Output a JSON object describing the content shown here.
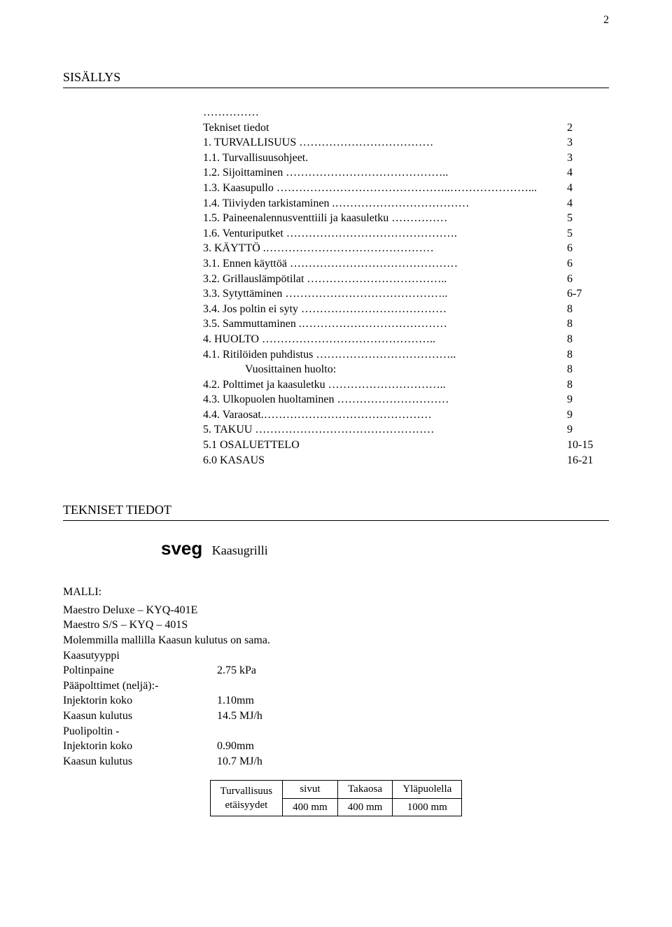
{
  "page_number": "2",
  "sections": {
    "sisallys_heading": "SISÄLLYS",
    "tekniset_heading": "TEKNISET TIEDOT"
  },
  "toc": {
    "rows": [
      {
        "indent": 1,
        "left": "……………",
        "fill": "",
        "right": "",
        "pad": false
      },
      {
        "indent": 1,
        "left": "Tekniset tiedot",
        "fill": "",
        "right": "2",
        "pad": false
      },
      {
        "indent": 1,
        "left": "1. TURVALLISUUS ",
        "fill": "………………………………",
        "right": "3",
        "pad": true
      },
      {
        "indent": 1,
        "left": "1.1. Turvallisuusohjeet. ",
        "fill": "",
        "right": "3",
        "pad": false
      },
      {
        "indent": 1,
        "left": "1.2. Sijoittaminen ",
        "fill": "……………………………………..",
        "right": "4",
        "pad": true
      },
      {
        "indent": 1,
        "left": "1.3. Kaasupullo ",
        "fill": "………………………………………..…………………...",
        "right": "4",
        "pad": true
      },
      {
        "indent": 1,
        "left": "1.4. Tiiviyden tarkistaminen .",
        "fill": "………………………………",
        "right": "4",
        "pad": true
      },
      {
        "indent": 1,
        "left": "1.5. Paineenalennusventtiili ja kaasuletku ",
        "fill": "……………",
        "right": "5",
        "pad": true
      },
      {
        "indent": 1,
        "left": "1.6. Venturiputket ",
        "fill": "……………………………………….",
        "right": "5",
        "pad": true
      },
      {
        "indent": 1,
        "left": "3. KÄYTTÖ .",
        "fill": "………………………………………",
        "right": "6",
        "pad": true
      },
      {
        "indent": 1,
        "left": "3.1. Ennen käyttöä ",
        "fill": "………………………………………",
        "right": "6",
        "pad": true
      },
      {
        "indent": 1,
        "left": "3.2. Grillauslämpötilat ",
        "fill": "………………………………..",
        "right": "6",
        "pad": true
      },
      {
        "indent": 1,
        "left": "3.3. Sytyttäminen ",
        "fill": "……………………………………..",
        "right": "6-7",
        "pad": true
      },
      {
        "indent": 1,
        "left": "3.4. Jos poltin ei syty ",
        "fill": "…………………………………",
        "right": "8",
        "pad": true
      },
      {
        "indent": 1,
        "left": "3.5. Sammuttaminen .",
        "fill": "…………………………………",
        "right": "8",
        "pad": true
      },
      {
        "indent": 1,
        "left": "4. HUOLTO ",
        "fill": "………………………………………..",
        "right": "8",
        "pad": true
      },
      {
        "indent": 1,
        "left": "4.1. Ritilöiden puhdistus ",
        "fill": "………………………………..",
        "right": "8",
        "pad": true
      },
      {
        "indent": 2,
        "left": "Vuosittainen huolto:",
        "fill": "",
        "right": "8",
        "pad": false
      },
      {
        "indent": 1,
        "left": "4.2. Polttimet ja kaasuletku ",
        "fill": "…………………………..",
        "right": "8",
        "pad": true
      },
      {
        "indent": 1,
        "left": "4.3. Ulkopuolen huoltaminen ",
        "fill": "…………………………",
        "right": "9",
        "pad": true
      },
      {
        "indent": 1,
        "left": "4.4. Varaosat.",
        "fill": "………………………………………",
        "right": "9",
        "pad": true
      },
      {
        "indent": 1,
        "left": "5. TAKUU ",
        "fill": "…………………………………………",
        "right": "9",
        "pad": true
      },
      {
        "indent": 1,
        "left": "5.1 OSALUETTELO",
        "fill": "",
        "right": "10-15",
        "pad": false
      },
      {
        "indent": 1,
        "left": "6.0 KASAUS",
        "fill": "",
        "right": "16-21",
        "pad": false
      }
    ]
  },
  "sveg": {
    "brand": "sveg",
    "suffix": "Kaasugrilli"
  },
  "specs": {
    "malli_label": "MALLI:",
    "lines_plain": [
      "Maestro Deluxe – KYQ-401E",
      "Maestro S/S – KYQ – 401S",
      "Molemmilla mallilla Kaasun kulutus on sama.",
      "Kaasutyyppi"
    ],
    "pairs": [
      {
        "key": "Poltinpaine",
        "value": "2.75 kPa"
      },
      {
        "key": "Pääpolttimet (neljä):-",
        "value": ""
      },
      {
        "key": "Injektorin koko",
        "value": "1.10mm"
      },
      {
        "key": "Kaasun kulutus",
        "value": "14.5 MJ/h"
      },
      {
        "key": "Puolipoltin -",
        "value": ""
      },
      {
        "key": "Injektorin koko",
        "value": "0.90mm"
      },
      {
        "key": "Kaasun kulutus",
        "value": "10.7 MJ/h"
      }
    ]
  },
  "safety_table": {
    "left_top": "Turvallisuus",
    "left_bottom": "etäisyydet",
    "headers": [
      "sivut",
      "Takaosa",
      "Yläpuolella"
    ],
    "values": [
      "400 mm",
      "400 mm",
      "1000 mm"
    ]
  }
}
